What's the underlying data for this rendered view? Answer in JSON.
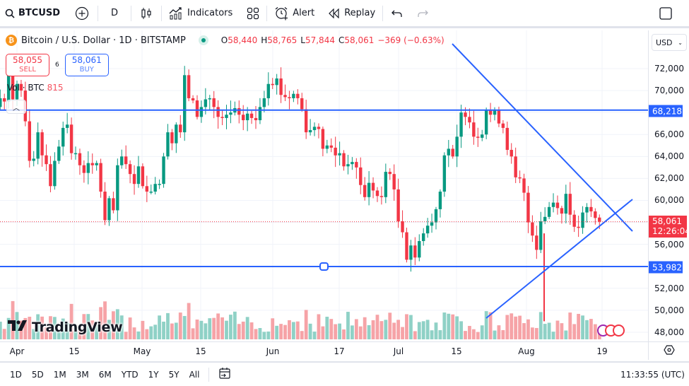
{
  "toolbar": {
    "symbol": "BTCUSD",
    "interval": "D",
    "indicators_label": "Indicators",
    "alert_label": "Alert",
    "replay_label": "Replay",
    "icons": [
      "search-icon",
      "add-symbol-icon",
      "candles-icon",
      "indicators-icon",
      "layouts-icon",
      "alert-icon",
      "replay-icon",
      "undo-icon",
      "redo-icon",
      "fullscreen-icon"
    ]
  },
  "legend": {
    "title": "Bitcoin / U.S. Dollar · 1D · BITSTAMP",
    "open_key": "O",
    "open": "58,440",
    "high_key": "H",
    "high": "58,765",
    "low_key": "L",
    "low": "57,844",
    "close_key": "C",
    "close": "58,061",
    "change": "−369 (−0.63%)"
  },
  "trade": {
    "sell_price": "58,055",
    "sell_label": "SELL",
    "spread": "6",
    "buy_price": "58,061",
    "buy_label": "BUY"
  },
  "volume_legend": {
    "label": "Vol · BTC",
    "value": "815"
  },
  "logo": "TradingView",
  "price_axis": {
    "currency": "USD",
    "ticks": [
      "72,000",
      "70,000",
      "66,000",
      "64,000",
      "62,000",
      "60,000",
      "56,000",
      "52,000",
      "50,000",
      "48,000"
    ],
    "resistance_label": "68,218",
    "support_label": "53,982",
    "last_price": "58,061",
    "countdown": "12:26:04"
  },
  "time_axis": {
    "labels": [
      "Apr",
      "15",
      "May",
      "15",
      "Jun",
      "17",
      "Jul",
      "15",
      "Aug",
      "19"
    ]
  },
  "bottom_bar": {
    "ranges": [
      "1D",
      "5D",
      "1M",
      "3M",
      "6M",
      "YTD",
      "1Y",
      "5Y",
      "All"
    ],
    "clock": "11:33:55 (UTC)"
  },
  "colors": {
    "up": "#089981",
    "down": "#f23645",
    "up_vol": "#8fd1c6",
    "down_vol": "#f6a3a7",
    "drawing": "#2962ff",
    "grid": "#f0f3fa"
  },
  "chart_data": {
    "type": "candlestick",
    "title": "Bitcoin / U.S. Dollar · 1D · BITSTAMP",
    "xlabel": "",
    "ylabel": "USD",
    "ylim": [
      47000,
      74500
    ],
    "grid": true,
    "x_tick_labels": [
      "Apr",
      "15",
      "May",
      "15",
      "Jun",
      "17",
      "Jul",
      "15",
      "Aug",
      "19"
    ],
    "y_tick_labels": [
      "48,000",
      "50,000",
      "52,000",
      "56,000",
      "60,000",
      "62,000",
      "64,000",
      "66,000",
      "70,000",
      "72,000"
    ],
    "horizontal_levels": [
      68218,
      53982
    ],
    "trendlines": [
      {
        "name": "descending resistance",
        "from": [
          "Jun 29",
          74000
        ],
        "to": [
          "Aug 28",
          57200
        ]
      },
      {
        "name": "ascending support",
        "from": [
          "Jul 25",
          49700
        ],
        "to": [
          "Aug 28",
          60100
        ]
      }
    ],
    "last": {
      "open": 58440,
      "high": 58765,
      "low": 57844,
      "close": 58061,
      "change": -369,
      "change_pct": -0.63
    },
    "closes_approx": [
      69700,
      70800,
      68900,
      66500,
      65900,
      68500,
      69300,
      69000,
      71500,
      69200,
      70600,
      70000,
      67200,
      63600,
      63800,
      66200,
      64100,
      63300,
      61300,
      63600,
      64900,
      66600,
      66900,
      64300,
      64300,
      63200,
      62500,
      63400,
      63200,
      63400,
      60800,
      58200,
      60200,
      59100,
      63200,
      64000,
      63300,
      62400,
      61500,
      63100,
      61300,
      60800,
      60800,
      61500,
      61500,
      64000,
      66200,
      65200,
      66900,
      66200,
      71400,
      69300,
      69100,
      67600,
      68500,
      69200,
      69300,
      68500,
      67600,
      67500,
      67800,
      68000,
      68400,
      67800,
      67300,
      67900,
      67500,
      67300,
      68500,
      69300,
      70600,
      70500,
      71100,
      69600,
      69400,
      69300,
      69700,
      69300,
      68300,
      66200,
      66400,
      66700,
      66500,
      64700,
      65000,
      64800,
      64100,
      64300,
      63100,
      63300,
      63500,
      63000,
      61400,
      60300,
      61600,
      60900,
      60400,
      60300,
      62600,
      62400,
      61000,
      58100,
      57100,
      54600,
      55900,
      54800,
      56300,
      57000,
      57700,
      58000,
      59200,
      60800,
      64100,
      64700,
      64000,
      65800,
      68000,
      67600,
      67100,
      65800,
      65700,
      66000,
      68200,
      67800,
      68200,
      67000,
      66600,
      64600,
      64000,
      62100,
      62000,
      60700,
      58000,
      56800,
      55500,
      58100,
      58500,
      59400,
      59800,
      59300,
      58800,
      60600,
      58700,
      57600,
      57500,
      58900,
      59400,
      59000,
      58400,
      58061
    ]
  }
}
